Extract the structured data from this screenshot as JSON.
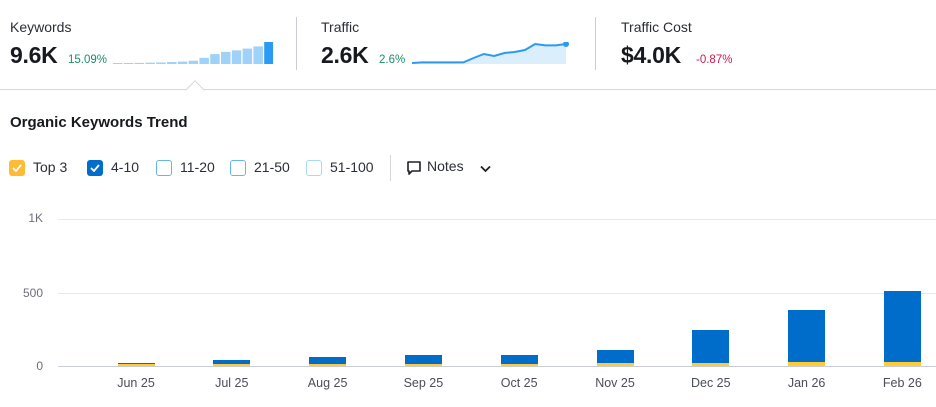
{
  "metrics": [
    {
      "label": "Keywords",
      "value": "9.6K",
      "change": "15.09%",
      "trend": "up",
      "sparkline": [
        0.04,
        0.04,
        0.05,
        0.06,
        0.07,
        0.09,
        0.11,
        0.15,
        0.28,
        0.45,
        0.55,
        0.62,
        0.7,
        0.8,
        1.0
      ]
    },
    {
      "label": "Traffic",
      "value": "2.6K",
      "change": "2.6%",
      "trend": "up",
      "sparkline": [
        0.05,
        0.08,
        0.08,
        0.08,
        0.08,
        0.08,
        0.3,
        0.5,
        0.4,
        0.55,
        0.6,
        0.7,
        1.0,
        0.93,
        0.93,
        1.0
      ]
    },
    {
      "label": "Traffic Cost",
      "value": "$4.0K",
      "change": "-0.87%",
      "trend": "down"
    }
  ],
  "chart": {
    "title": "Organic Keywords Trend",
    "legend": [
      {
        "label": "Top 3",
        "checked": true,
        "color": "#ffbb33"
      },
      {
        "label": "4-10",
        "checked": true,
        "color": "#006dca"
      },
      {
        "label": "11-20",
        "checked": false,
        "color": "#64b5ee"
      },
      {
        "label": "21-50",
        "checked": false,
        "color": "#64b5ee"
      },
      {
        "label": "51-100",
        "checked": false,
        "color": "#a9d7f6"
      }
    ],
    "notes_label": "Notes",
    "yticks": [
      "1K",
      "500",
      "0"
    ]
  },
  "chart_data": {
    "type": "bar",
    "stacked": true,
    "categories": [
      "Jun 25",
      "Jul 25",
      "Aug 25",
      "Sep 25",
      "Oct 25",
      "Nov 25",
      "Dec 25",
      "Jan 26",
      "Feb 26"
    ],
    "series": [
      {
        "name": "Top 3",
        "color": "#ffcc33",
        "values": [
          2,
          5,
          12,
          15,
          16,
          18,
          22,
          25,
          28
        ]
      },
      {
        "name": "4-10",
        "color": "#006dca",
        "values": [
          8,
          28,
          50,
          58,
          62,
          90,
          225,
          355,
          482
        ]
      }
    ],
    "ylim": [
      0,
      1000
    ]
  }
}
